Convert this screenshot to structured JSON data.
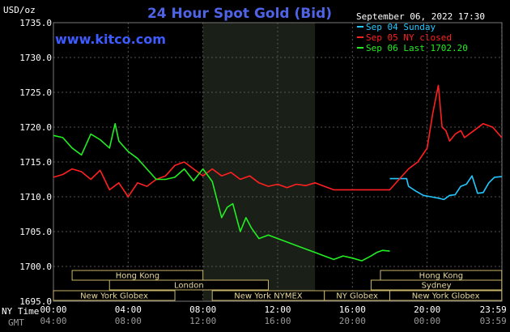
{
  "chart_data": {
    "type": "line",
    "title": "24 Hour Spot Gold (Bid)",
    "brand": "www.kitco.com",
    "ylabel": "USD/oz",
    "ylim": [
      1695,
      1735
    ],
    "yticks": [
      "1695.0",
      "1700.0",
      "1705.0",
      "1710.0",
      "1715.0",
      "1720.0",
      "1725.0",
      "1730.0",
      "1735.0"
    ],
    "xlim": [
      0,
      24
    ],
    "x_ticks_ny": [
      "00:00",
      "04:00",
      "08:00",
      "12:00",
      "16:00",
      "20:00",
      "23:59"
    ],
    "x_ticks_gmt": [
      "04:00",
      "08:00",
      "12:00",
      "16:00",
      "20:00",
      "00:00",
      "03:59"
    ],
    "x_axis_labels": {
      "ny": "NY Time",
      "gmt": "GMT"
    },
    "timestamp": "September 06, 2022 17:30",
    "legend_placement": "top-right",
    "colors": {
      "sep04": "#22c8ff",
      "sep05": "#ff2020",
      "sep06": "#22ee22",
      "title": "#4f63e6",
      "brand": "#3d5bff",
      "session": "#e6d79a"
    },
    "highlight_range": [
      8.0,
      14.0
    ],
    "series": [
      {
        "name": "Sep 04 Sunday",
        "color": "#22c8ff",
        "x": [
          18.0,
          18.9,
          19.0,
          19.4,
          19.8,
          20.2,
          20.6,
          20.9,
          21.2,
          21.5,
          21.8,
          22.1,
          22.4,
          22.7,
          23.0,
          23.3,
          23.6,
          23.99
        ],
        "y": [
          1712.6,
          1712.6,
          1711.5,
          1710.8,
          1710.2,
          1710.0,
          1709.8,
          1709.6,
          1710.2,
          1710.3,
          1711.5,
          1711.8,
          1713.0,
          1710.5,
          1710.6,
          1712.0,
          1712.8,
          1712.9
        ]
      },
      {
        "name": "Sep 05 NY closed",
        "color": "#ff2020",
        "x": [
          0,
          0.5,
          1.0,
          1.5,
          2.0,
          2.5,
          3.0,
          3.5,
          4.0,
          4.5,
          5.0,
          5.5,
          6.0,
          6.5,
          7.0,
          7.5,
          8.0,
          8.5,
          9.0,
          9.5,
          10.0,
          10.5,
          11.0,
          11.5,
          12.0,
          12.5,
          13.0,
          13.5,
          14.0,
          14.5,
          15.0,
          16.0,
          17.0,
          18.0,
          18.5,
          19.0,
          19.5,
          20.0,
          20.3,
          20.6,
          20.8,
          21.0,
          21.2,
          21.5,
          21.8,
          22.0,
          22.5,
          23.0,
          23.5,
          23.99
        ],
        "y": [
          1712.8,
          1713.2,
          1714.0,
          1713.6,
          1712.5,
          1713.8,
          1711.0,
          1712.0,
          1710.0,
          1712.0,
          1711.5,
          1712.5,
          1713.0,
          1714.5,
          1715.0,
          1714.0,
          1713.0,
          1714.0,
          1713.0,
          1713.5,
          1712.5,
          1713.0,
          1712.0,
          1711.5,
          1711.8,
          1711.3,
          1711.8,
          1711.6,
          1712.0,
          1711.5,
          1711.0,
          1711.0,
          1711.0,
          1711.0,
          1712.5,
          1714.0,
          1715.0,
          1717.0,
          1722.0,
          1726.0,
          1720.0,
          1719.5,
          1718.0,
          1719.0,
          1719.5,
          1718.5,
          1719.5,
          1720.5,
          1720.0,
          1718.5
        ]
      },
      {
        "name": "Sep 06 Last 1702.20",
        "color": "#22ee22",
        "x": [
          0,
          0.5,
          1.0,
          1.5,
          2.0,
          2.5,
          3.0,
          3.3,
          3.5,
          4.0,
          4.5,
          5.0,
          5.5,
          6.0,
          6.5,
          7.0,
          7.5,
          8.0,
          8.5,
          9.0,
          9.3,
          9.6,
          10.0,
          10.3,
          10.6,
          11.0,
          11.5,
          12.0,
          12.5,
          13.0,
          13.5,
          14.0,
          14.5,
          15.0,
          15.5,
          16.0,
          16.5,
          17.0,
          17.3,
          17.6,
          18.0
        ],
        "y": [
          1718.8,
          1718.5,
          1717.0,
          1716.0,
          1719.0,
          1718.2,
          1717.0,
          1720.5,
          1718.0,
          1716.5,
          1715.5,
          1714.0,
          1712.5,
          1712.5,
          1712.8,
          1714.0,
          1712.3,
          1714.0,
          1712.2,
          1707.0,
          1708.5,
          1709.0,
          1705.0,
          1707.0,
          1705.5,
          1704.0,
          1704.5,
          1704.0,
          1703.5,
          1703.0,
          1702.5,
          1702.0,
          1701.5,
          1701.0,
          1701.5,
          1701.2,
          1700.8,
          1701.5,
          1702.0,
          1702.3,
          1702.2
        ]
      }
    ],
    "sessions": [
      {
        "label": "Hong Kong",
        "start": 1.0,
        "end": 8.0,
        "row": 0
      },
      {
        "label": "Hong Kong",
        "start": 17.5,
        "end": 23.99,
        "row": 0
      },
      {
        "label": "London",
        "start": 3.0,
        "end": 11.5,
        "row": 1
      },
      {
        "label": "Sydney",
        "start": 17.0,
        "end": 23.99,
        "row": 1
      },
      {
        "label": "New York Globex",
        "start": 0.0,
        "end": 6.5,
        "row": 2
      },
      {
        "label": "New York NYMEX",
        "start": 8.5,
        "end": 14.5,
        "row": 2
      },
      {
        "label": "NY Globex",
        "start": 14.5,
        "end": 18.0,
        "row": 2
      },
      {
        "label": "New York Globex",
        "start": 18.0,
        "end": 23.99,
        "row": 2
      }
    ]
  }
}
